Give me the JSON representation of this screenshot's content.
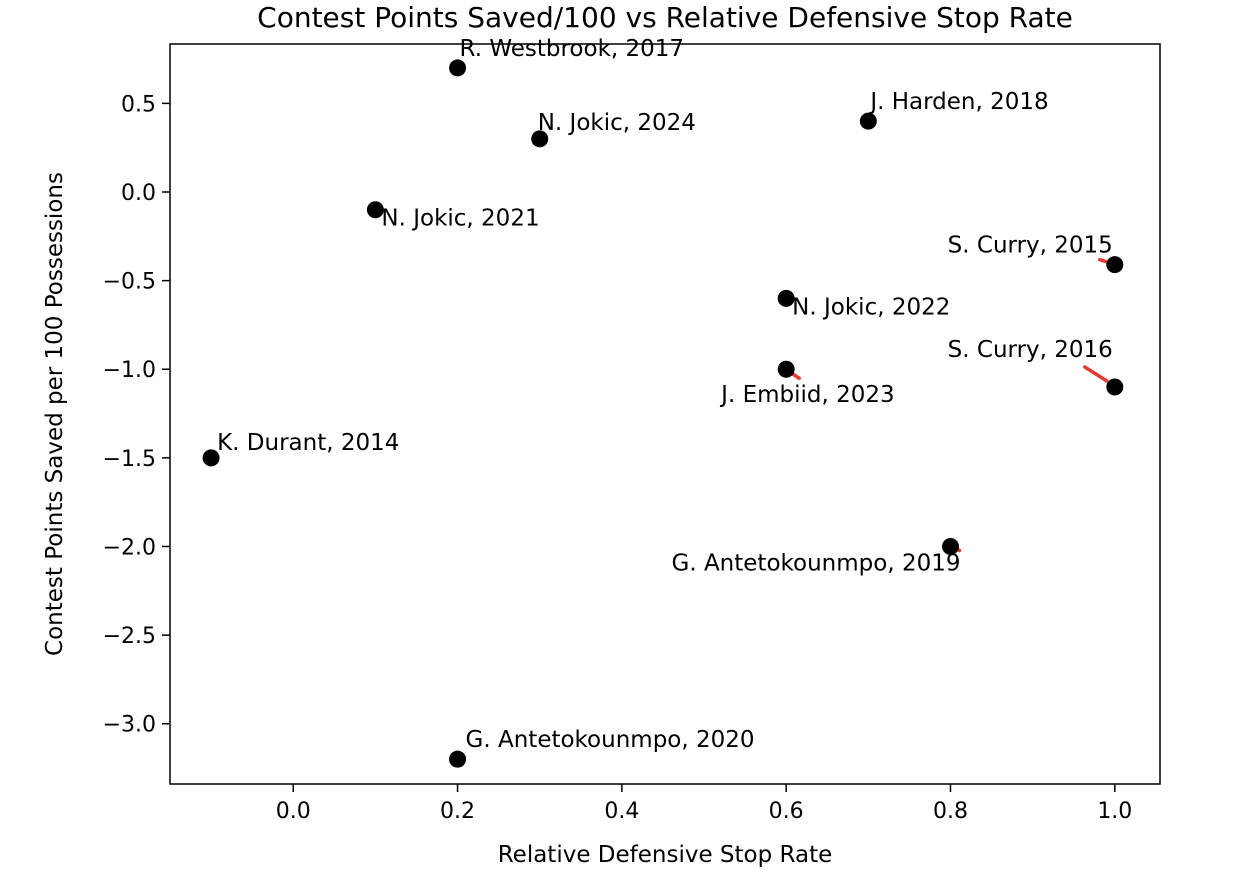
{
  "chart_data": {
    "type": "scatter",
    "title": "Contest Points Saved/100 vs Relative Defensive Stop Rate",
    "xlabel": "Relative Defensive Stop Rate",
    "ylabel": "Contest Points Saved per 100 Possessions",
    "xlim": [
      -0.15,
      1.055
    ],
    "ylim": [
      -3.34,
      0.835
    ],
    "xticks": [
      0.0,
      0.2,
      0.4,
      0.6,
      0.8,
      1.0
    ],
    "xtick_labels": [
      "0.0",
      "0.2",
      "0.4",
      "0.6",
      "0.8",
      "1.0"
    ],
    "yticks": [
      0.5,
      0.0,
      -0.5,
      -1.0,
      -1.5,
      -2.0,
      -2.5,
      -3.0
    ],
    "ytick_labels": [
      "0.5",
      "0.0",
      "−0.5",
      "−1.0",
      "−1.5",
      "−2.0",
      "−2.5",
      "−3.0"
    ],
    "grid": false,
    "marker_color": "#000000",
    "leader_line_color": "#e8392d",
    "points": [
      {
        "label": "K. Durant, 2014",
        "x": -0.1,
        "y": -1.5
      },
      {
        "label": "S. Curry, 2015",
        "x": 1.0,
        "y": -0.41
      },
      {
        "label": "S. Curry, 2016",
        "x": 1.0,
        "y": -1.1
      },
      {
        "label": "R. Westbrook, 2017",
        "x": 0.2,
        "y": 0.7
      },
      {
        "label": "J. Harden, 2018",
        "x": 0.7,
        "y": 0.4
      },
      {
        "label": "G. Antetokounmpo, 2019",
        "x": 0.8,
        "y": -2.0
      },
      {
        "label": "G. Antetokounmpo, 2020",
        "x": 0.2,
        "y": -3.2
      },
      {
        "label": "N. Jokic, 2021",
        "x": 0.1,
        "y": -0.1
      },
      {
        "label": "N. Jokic, 2022",
        "x": 0.6,
        "y": -0.6
      },
      {
        "label": "J. Embiid, 2023",
        "x": 0.6,
        "y": -1.0
      },
      {
        "label": "N. Jokic, 2024",
        "x": 0.3,
        "y": 0.3
      }
    ]
  }
}
